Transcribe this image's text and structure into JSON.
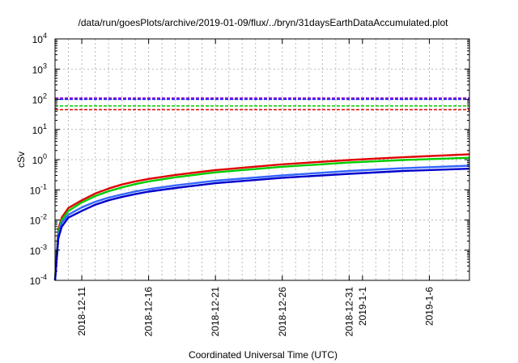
{
  "chart_data": {
    "type": "line",
    "title": "/data/run/goesPlots/archive/2019-01-09/flux/../bryn/31daysEarthDataAccumulated.plot",
    "xlabel": "Coordinated Universal Time (UTC)",
    "ylabel": "cSv",
    "y_scale": "log",
    "ylim": [
      0.0001,
      10000
    ],
    "xlim": [
      "2018-12-09",
      "2019-01-09"
    ],
    "grid": true,
    "legend": "none",
    "y_ticks": [
      {
        "base": "10",
        "exp": "-4",
        "value": 0.0001
      },
      {
        "base": "10",
        "exp": "-3",
        "value": 0.001
      },
      {
        "base": "10",
        "exp": "-2",
        "value": 0.01
      },
      {
        "base": "10",
        "exp": "-1",
        "value": 0.1
      },
      {
        "base": "10",
        "exp": "0",
        "value": 1
      },
      {
        "base": "10",
        "exp": "1",
        "value": 10
      },
      {
        "base": "10",
        "exp": "2",
        "value": 100
      },
      {
        "base": "10",
        "exp": "3",
        "value": 1000
      },
      {
        "base": "10",
        "exp": "4",
        "value": 10000
      }
    ],
    "x_ticks": [
      {
        "label": "2018-12-11",
        "date": "2018-12-11"
      },
      {
        "label": "2018-12-16",
        "date": "2018-12-16"
      },
      {
        "label": "2018-12-21",
        "date": "2018-12-21"
      },
      {
        "label": "2018-12-26",
        "date": "2018-12-26"
      },
      {
        "label": "2018-12-31",
        "date": "2018-12-31"
      },
      {
        "label": "2019-1-1",
        "date": "2019-01-01"
      },
      {
        "label": "2019-1-6",
        "date": "2019-01-06"
      }
    ],
    "reference_lines": [
      {
        "value": 110,
        "color": "#9400d3"
      },
      {
        "value": 100,
        "color": "#0000ff"
      },
      {
        "value": 60,
        "color": "#00cc00"
      },
      {
        "value": 45,
        "color": "#e00000"
      }
    ],
    "series": [
      {
        "color": "#e00000",
        "points": [
          [
            "2018-12-09",
            0.0001
          ],
          [
            "2018-12-09T06",
            0.005
          ],
          [
            "2018-12-09T12",
            0.012
          ],
          [
            "2018-12-10",
            0.025
          ],
          [
            "2018-12-11",
            0.045
          ],
          [
            "2018-12-12",
            0.075
          ],
          [
            "2018-12-13",
            0.11
          ],
          [
            "2018-12-14",
            0.15
          ],
          [
            "2018-12-15",
            0.19
          ],
          [
            "2018-12-16",
            0.23
          ],
          [
            "2018-12-18",
            0.31
          ],
          [
            "2018-12-21",
            0.45
          ],
          [
            "2018-12-26",
            0.7
          ],
          [
            "2018-12-31",
            0.97
          ],
          [
            "2019-01-04",
            1.2
          ],
          [
            "2019-01-09",
            1.5
          ]
        ]
      },
      {
        "color": "#00cc00",
        "points": [
          [
            "2018-12-09",
            0.0001
          ],
          [
            "2018-12-09T06",
            0.004
          ],
          [
            "2018-12-09T12",
            0.01
          ],
          [
            "2018-12-10",
            0.02
          ],
          [
            "2018-12-11",
            0.038
          ],
          [
            "2018-12-12",
            0.062
          ],
          [
            "2018-12-13",
            0.09
          ],
          [
            "2018-12-14",
            0.12
          ],
          [
            "2018-12-15",
            0.155
          ],
          [
            "2018-12-16",
            0.19
          ],
          [
            "2018-12-18",
            0.26
          ],
          [
            "2018-12-21",
            0.38
          ],
          [
            "2018-12-26",
            0.58
          ],
          [
            "2018-12-31",
            0.8
          ],
          [
            "2019-01-04",
            0.97
          ],
          [
            "2019-01-09",
            1.15
          ]
        ]
      },
      {
        "color": "#3366ff",
        "points": [
          [
            "2018-12-09",
            0.0001
          ],
          [
            "2018-12-09T06",
            0.003
          ],
          [
            "2018-12-09T12",
            0.008
          ],
          [
            "2018-12-10",
            0.015
          ],
          [
            "2018-12-11",
            0.026
          ],
          [
            "2018-12-12",
            0.04
          ],
          [
            "2018-12-13",
            0.055
          ],
          [
            "2018-12-14",
            0.07
          ],
          [
            "2018-12-15",
            0.088
          ],
          [
            "2018-12-16",
            0.105
          ],
          [
            "2018-12-18",
            0.14
          ],
          [
            "2018-12-21",
            0.2
          ],
          [
            "2018-12-26",
            0.3
          ],
          [
            "2018-12-31",
            0.42
          ],
          [
            "2019-01-04",
            0.52
          ],
          [
            "2019-01-09",
            0.63
          ]
        ]
      },
      {
        "color": "#0000cc",
        "points": [
          [
            "2018-12-09",
            0.0001
          ],
          [
            "2018-12-09T06",
            0.0025
          ],
          [
            "2018-12-09T12",
            0.006
          ],
          [
            "2018-12-10",
            0.012
          ],
          [
            "2018-12-11",
            0.02
          ],
          [
            "2018-12-12",
            0.032
          ],
          [
            "2018-12-13",
            0.045
          ],
          [
            "2018-12-14",
            0.058
          ],
          [
            "2018-12-15",
            0.072
          ],
          [
            "2018-12-16",
            0.087
          ],
          [
            "2018-12-18",
            0.115
          ],
          [
            "2018-12-21",
            0.165
          ],
          [
            "2018-12-26",
            0.25
          ],
          [
            "2018-12-31",
            0.34
          ],
          [
            "2019-01-04",
            0.42
          ],
          [
            "2019-01-09",
            0.5
          ]
        ]
      }
    ]
  }
}
